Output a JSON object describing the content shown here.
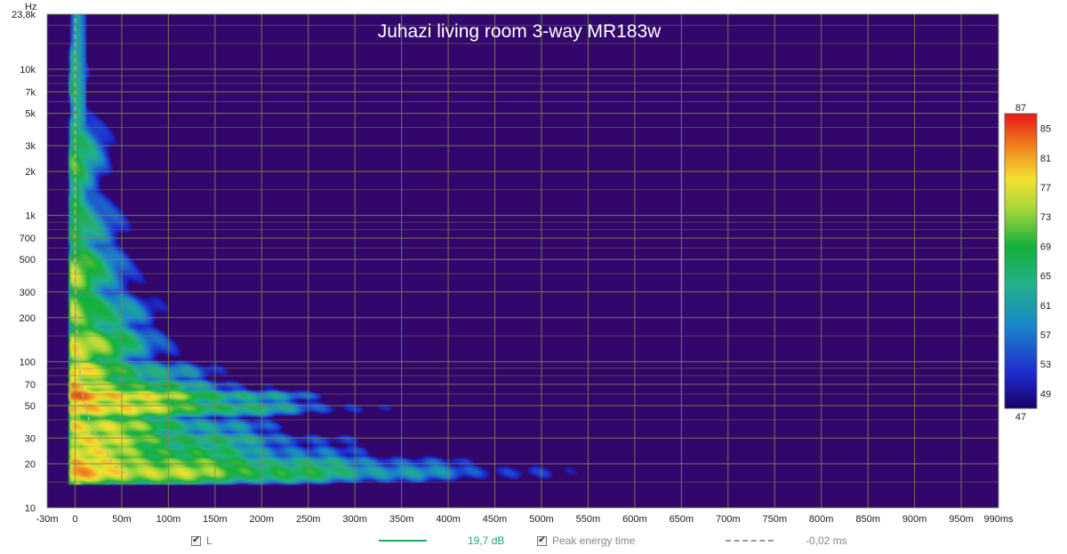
{
  "chart_data": {
    "type": "heatmap",
    "title": "Juhazi living room 3-way MR183w",
    "x_unit": "ms",
    "y_unit": "Hz",
    "xlim_ms": [
      -30,
      990
    ],
    "ylim_hz": [
      10,
      23800
    ],
    "y_scale": "log",
    "grid": true,
    "x_ticks": [
      {
        "v": -30,
        "t": "-30m"
      },
      {
        "v": 0,
        "t": "0"
      },
      {
        "v": 50,
        "t": "50m"
      },
      {
        "v": 100,
        "t": "100m"
      },
      {
        "v": 150,
        "t": "150m"
      },
      {
        "v": 200,
        "t": "200m"
      },
      {
        "v": 250,
        "t": "250m"
      },
      {
        "v": 300,
        "t": "300m"
      },
      {
        "v": 350,
        "t": "350m"
      },
      {
        "v": 400,
        "t": "400m"
      },
      {
        "v": 450,
        "t": "450m"
      },
      {
        "v": 500,
        "t": "500m"
      },
      {
        "v": 550,
        "t": "550m"
      },
      {
        "v": 600,
        "t": "600m"
      },
      {
        "v": 650,
        "t": "650m"
      },
      {
        "v": 700,
        "t": "700m"
      },
      {
        "v": 750,
        "t": "750m"
      },
      {
        "v": 800,
        "t": "800m"
      },
      {
        "v": 850,
        "t": "850m"
      },
      {
        "v": 900,
        "t": "900m"
      },
      {
        "v": 950,
        "t": "950m"
      },
      {
        "v": 990,
        "t": "990ms"
      }
    ],
    "y_ticks": [
      {
        "v": 10,
        "t": "10"
      },
      {
        "v": 20,
        "t": "20"
      },
      {
        "v": 30,
        "t": "30"
      },
      {
        "v": 50,
        "t": "50"
      },
      {
        "v": 70,
        "t": "70"
      },
      {
        "v": 100,
        "t": "100"
      },
      {
        "v": 200,
        "t": "200"
      },
      {
        "v": 300,
        "t": "300"
      },
      {
        "v": 500,
        "t": "500"
      },
      {
        "v": 700,
        "t": "700"
      },
      {
        "v": 1000,
        "t": "1k"
      },
      {
        "v": 2000,
        "t": "2k"
      },
      {
        "v": 3000,
        "t": "3k"
      },
      {
        "v": 5000,
        "t": "5k"
      },
      {
        "v": 7000,
        "t": "7k"
      },
      {
        "v": 10000,
        "t": "10k"
      },
      {
        "v": 23800,
        "t": "23,8k"
      }
    ],
    "y_minor": [
      15,
      40,
      60,
      80,
      90,
      150,
      400,
      600,
      800,
      900,
      1500,
      4000,
      6000,
      8000,
      9000,
      15000,
      20000
    ],
    "y_axis_label": "Hz",
    "colorbar": {
      "min": 47,
      "max": 87,
      "ticks": [
        49,
        53,
        57,
        61,
        65,
        69,
        73,
        77,
        81,
        85
      ],
      "min_label": "47",
      "max_label": "87"
    },
    "peak_energy_curve": [
      [
        60,
        16
      ],
      [
        40,
        20
      ],
      [
        25,
        30
      ],
      [
        15,
        40
      ],
      [
        8,
        60
      ],
      [
        4,
        100
      ],
      [
        1,
        200
      ],
      [
        0,
        500
      ],
      [
        0,
        23800
      ]
    ],
    "blobs": [
      {
        "t0": -5,
        "t1": 850,
        "f": 17.5,
        "fw": 0.055,
        "amp": 78,
        "decay": 420
      },
      {
        "t0": -5,
        "t1": 780,
        "f": 20.5,
        "fw": 0.04,
        "amp": 76,
        "decay": 380
      },
      {
        "t0": -5,
        "t1": 720,
        "f": 24,
        "fw": 0.05,
        "amp": 75,
        "decay": 300
      },
      {
        "t0": -5,
        "t1": 560,
        "f": 29,
        "fw": 0.05,
        "amp": 76,
        "decay": 260
      },
      {
        "t0": -5,
        "t1": 380,
        "f": 36,
        "fw": 0.05,
        "amp": 77,
        "decay": 200
      },
      {
        "t0": -5,
        "t1": 450,
        "f": 48,
        "fw": 0.045,
        "amp": 80,
        "decay": 240
      },
      {
        "t0": -5,
        "t1": 460,
        "f": 58,
        "fw": 0.035,
        "amp": 83,
        "decay": 200
      },
      {
        "t0": -5,
        "t1": 360,
        "f": 68,
        "fw": 0.04,
        "amp": 77,
        "decay": 170
      },
      {
        "t0": -5,
        "t1": 260,
        "f": 85,
        "fw": 0.06,
        "amp": 76,
        "decay": 140
      },
      {
        "t0": -5,
        "t1": 230,
        "f": 130,
        "fw": 0.1,
        "amp": 75,
        "decay": 110
      },
      {
        "t0": -5,
        "t1": 200,
        "f": 220,
        "fw": 0.12,
        "amp": 73,
        "decay": 90
      },
      {
        "t0": -5,
        "t1": 180,
        "f": 400,
        "fw": 0.15,
        "amp": 71,
        "decay": 80
      },
      {
        "t0": -5,
        "t1": 150,
        "f": 900,
        "fw": 0.18,
        "amp": 68,
        "decay": 65
      },
      {
        "t0": -5,
        "t1": 120,
        "f": 2500,
        "fw": 0.25,
        "amp": 66,
        "decay": 55
      },
      {
        "t0": -5,
        "t1": 60,
        "f": 8000,
        "fw": 0.25,
        "amp": 62,
        "decay": 40
      }
    ],
    "legend": {
      "series_label": "L",
      "series_checked": true,
      "series_color": "#1fa86a",
      "series_value": "19,7 dB",
      "peak_label": "Peak energy time",
      "peak_checked": true,
      "peak_color": "#999999",
      "peak_value": "-0,02 ms"
    },
    "colors": {
      "background": "#33066b",
      "grid": "#7d8a50",
      "title": "#ffffff"
    }
  }
}
